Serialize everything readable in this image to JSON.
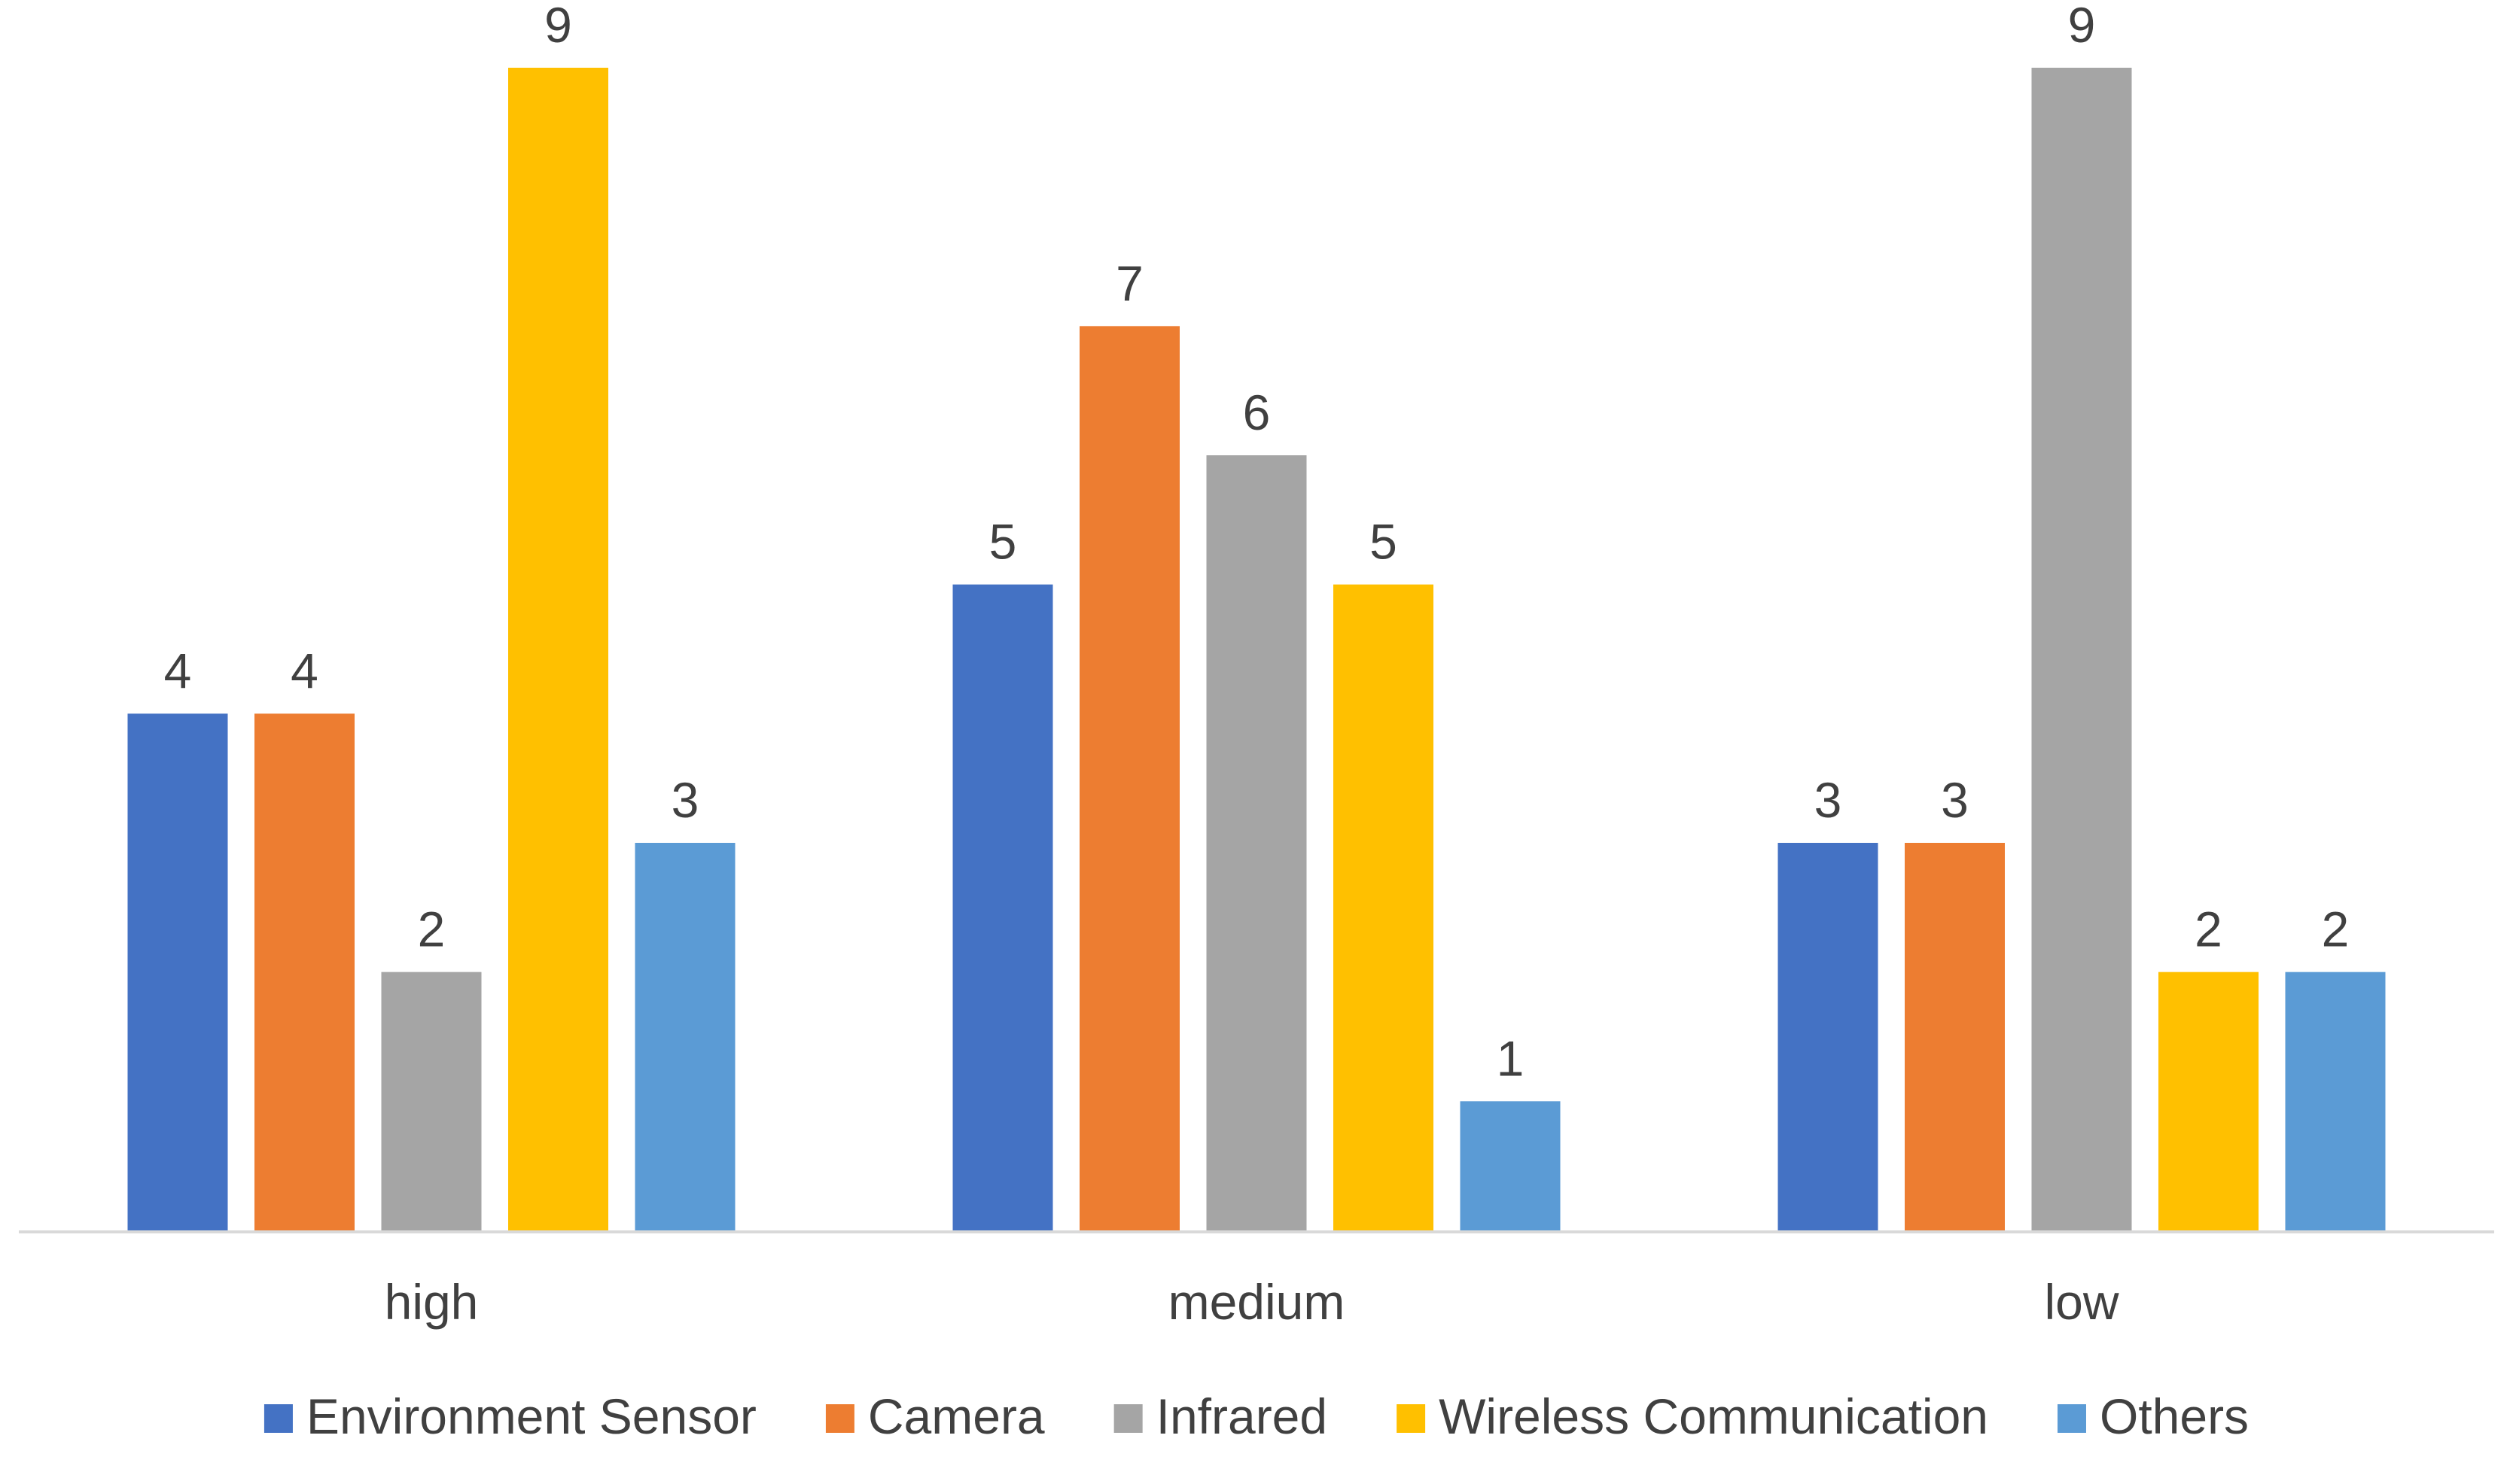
{
  "chart_data": {
    "type": "bar",
    "categories": [
      "high",
      "medium",
      "low"
    ],
    "series": [
      {
        "name": "Environment Sensor",
        "values": [
          4,
          5,
          3
        ],
        "color": "#4472C4"
      },
      {
        "name": "Camera",
        "values": [
          4,
          7,
          3
        ],
        "color": "#ED7D31"
      },
      {
        "name": "Infrared",
        "values": [
          2,
          6,
          9
        ],
        "color": "#A5A5A5"
      },
      {
        "name": "Wireless Communication",
        "values": [
          9,
          5,
          2
        ],
        "color": "#FFC000"
      },
      {
        "name": "Others",
        "values": [
          3,
          1,
          2
        ],
        "color": "#5B9BD5"
      }
    ],
    "ylim": [
      0,
      9
    ],
    "data_labels": true,
    "grid": false,
    "legend_position": "bottom",
    "axis_color": "#D9D9D9"
  }
}
